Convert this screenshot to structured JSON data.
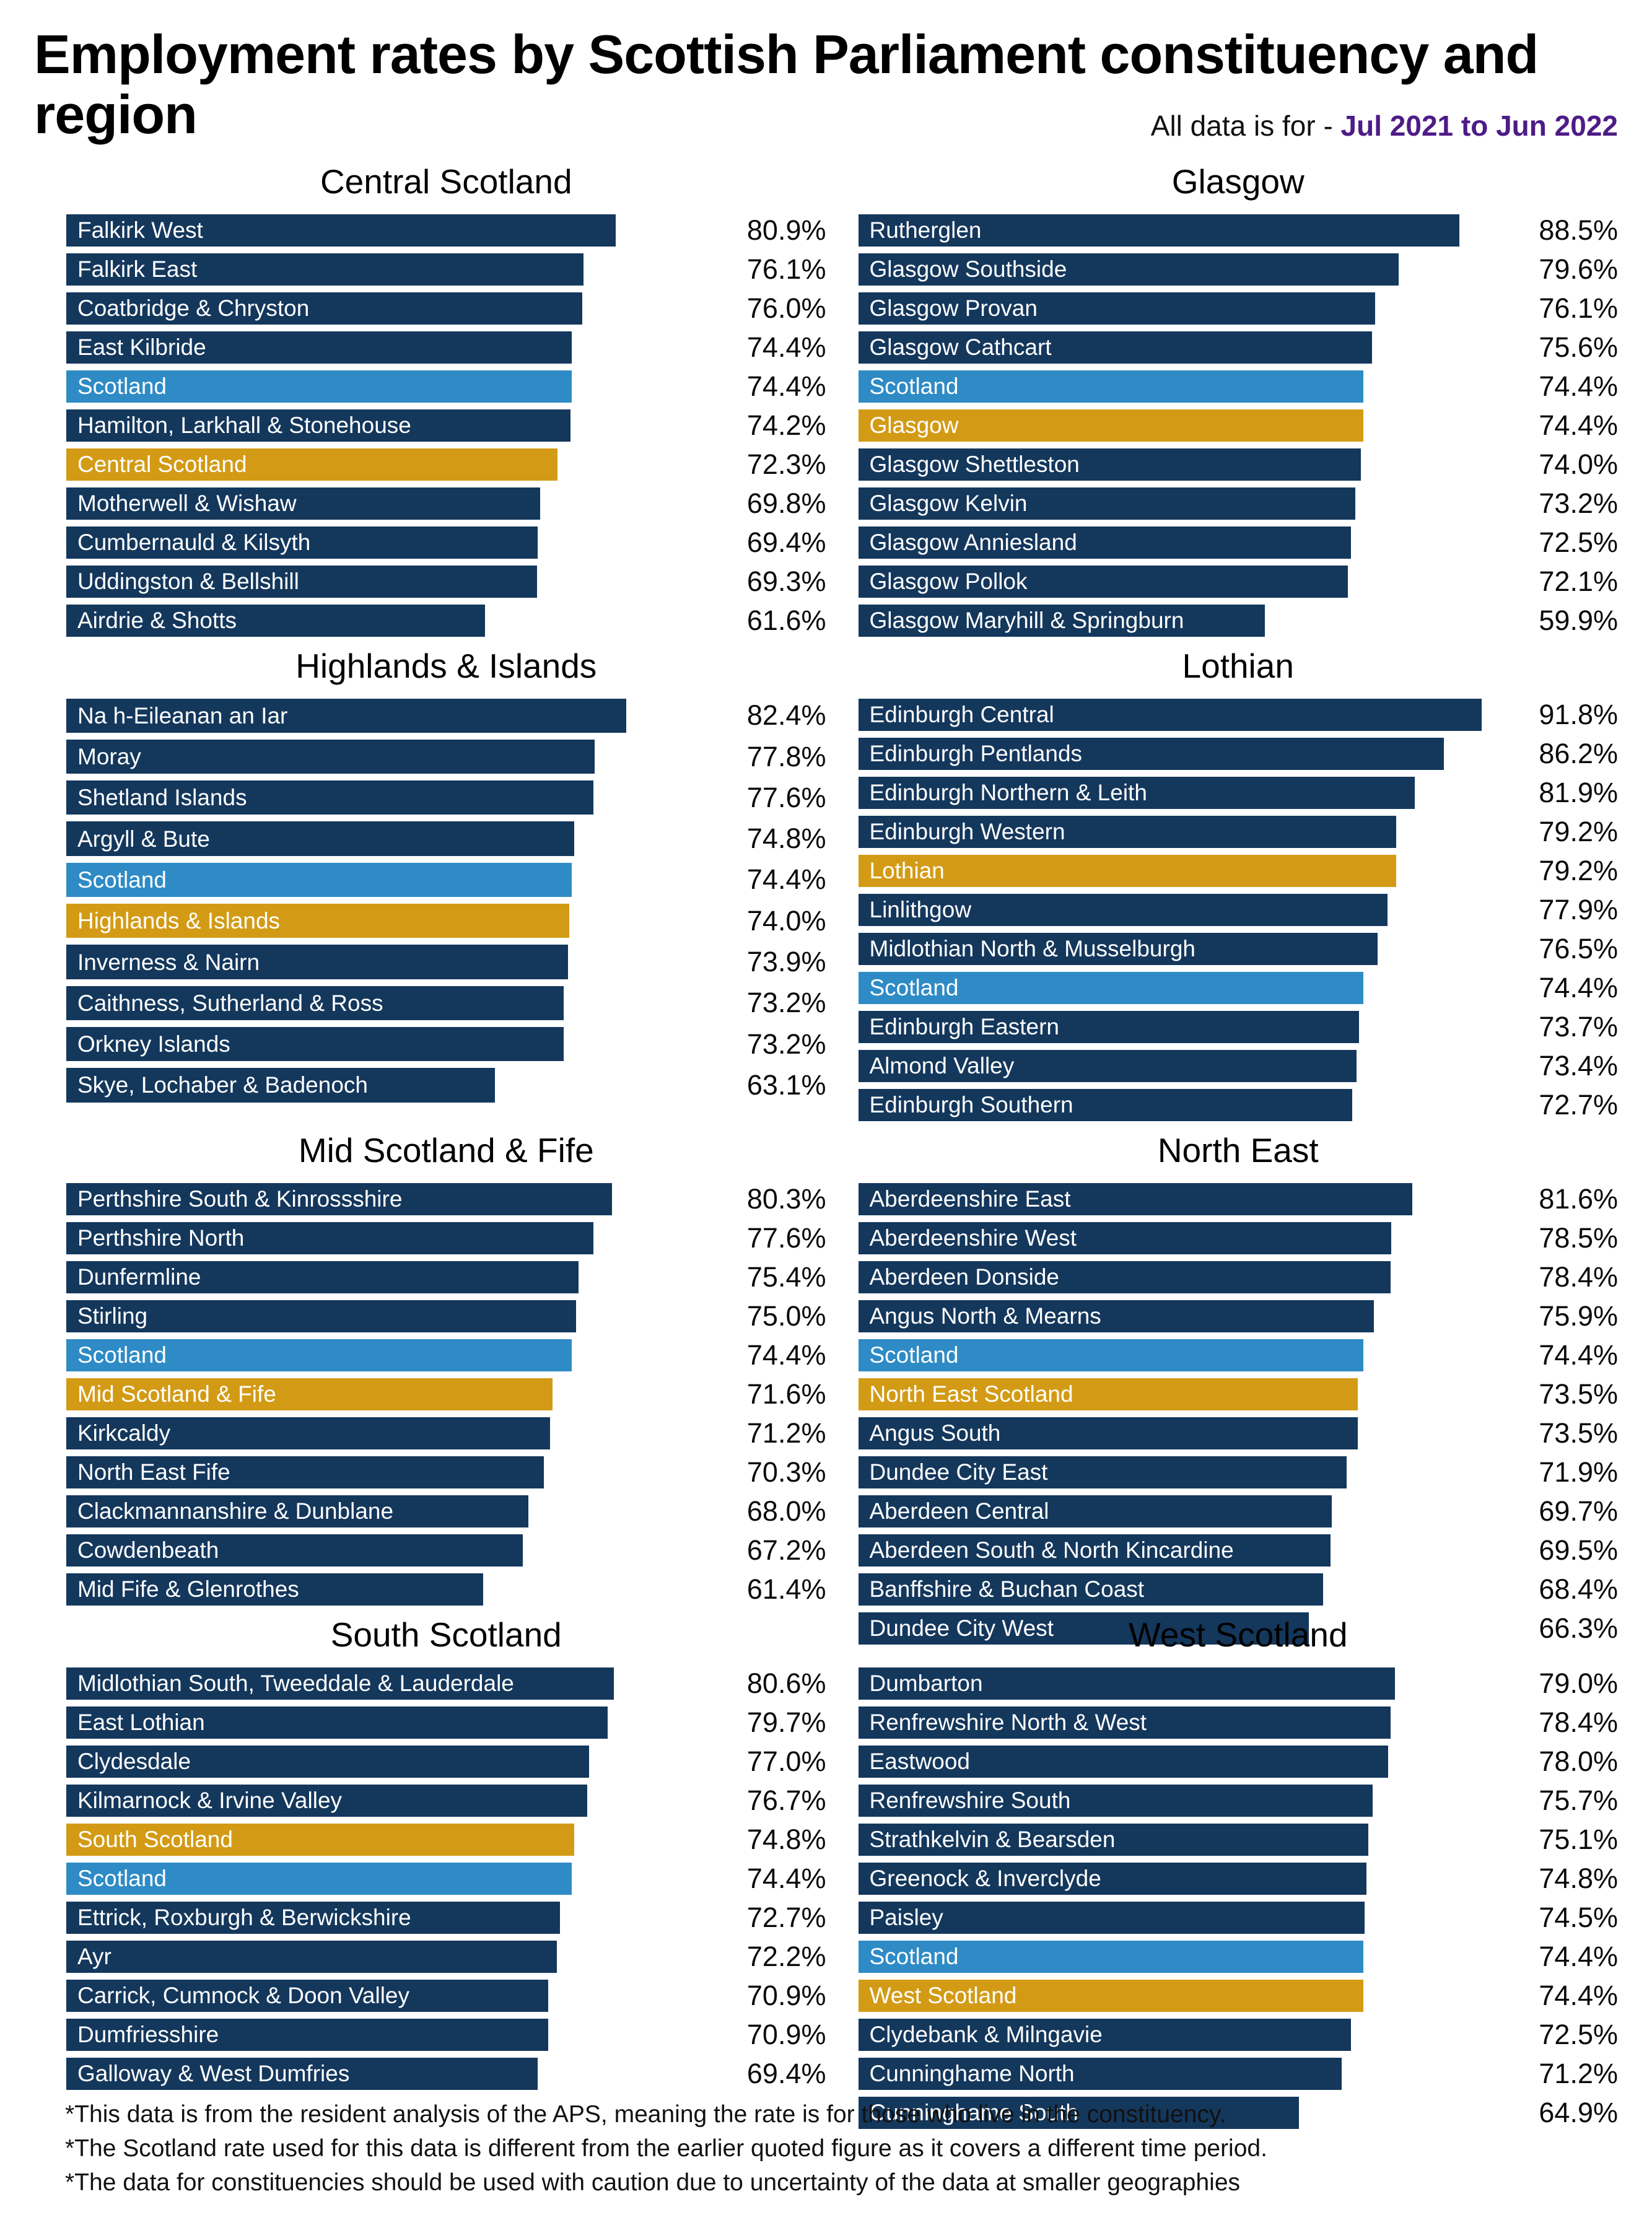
{
  "title": "Employment rates by Scottish Parliament constituency and region",
  "subtitle": {
    "prefix": "All data is for - ",
    "period": "Jul 2021 to Jun 2022"
  },
  "colors": {
    "constituency": "#14375c",
    "scotland": "#2e8bc5",
    "region": "#d39b15",
    "period_text": "#4e1b87",
    "bar_label": "#ffffff"
  },
  "footnotes": [
    "*This data is from the resident analysis of the APS, meaning the rate is for those who live in the constituency.",
    "*The Scotland rate used for this data is different from the earlier quoted figure as it covers a different time period.",
    "*The data for constituencies should be used with caution due to uncertainty of the data at smaller geographies"
  ],
  "chart_data": [
    {
      "type": "bar",
      "orientation": "horizontal",
      "title": "Central Scotland",
      "value_unit": "percent",
      "xlim": [
        0,
        95
      ],
      "rows": [
        {
          "label": "Falkirk West",
          "value": 80.9,
          "display": "80.9%",
          "kind": "constituency"
        },
        {
          "label": "Falkirk East",
          "value": 76.1,
          "display": "76.1%",
          "kind": "constituency"
        },
        {
          "label": "Coatbridge & Chryston",
          "value": 76.0,
          "display": "76.0%",
          "kind": "constituency"
        },
        {
          "label": "East Kilbride",
          "value": 74.4,
          "display": "74.4%",
          "kind": "constituency"
        },
        {
          "label": "Scotland",
          "value": 74.4,
          "display": "74.4%",
          "kind": "scotland"
        },
        {
          "label": "Hamilton, Larkhall & Stonehouse",
          "value": 74.2,
          "display": "74.2%",
          "kind": "constituency"
        },
        {
          "label": "Central Scotland",
          "value": 72.3,
          "display": "72.3%",
          "kind": "region"
        },
        {
          "label": "Motherwell & Wishaw",
          "value": 69.8,
          "display": "69.8%",
          "kind": "constituency"
        },
        {
          "label": "Cumbernauld & Kilsyth",
          "value": 69.4,
          "display": "69.4%",
          "kind": "constituency"
        },
        {
          "label": "Uddingston & Bellshill",
          "value": 69.3,
          "display": "69.3%",
          "kind": "constituency"
        },
        {
          "label": "Airdrie & Shotts",
          "value": 61.6,
          "display": "61.6%",
          "kind": "constituency"
        }
      ]
    },
    {
      "type": "bar",
      "orientation": "horizontal",
      "title": "Glasgow",
      "value_unit": "percent",
      "xlim": [
        0,
        95
      ],
      "rows": [
        {
          "label": "Rutherglen",
          "value": 88.5,
          "display": "88.5%",
          "kind": "constituency"
        },
        {
          "label": "Glasgow Southside",
          "value": 79.6,
          "display": "79.6%",
          "kind": "constituency"
        },
        {
          "label": "Glasgow Provan",
          "value": 76.1,
          "display": "76.1%",
          "kind": "constituency"
        },
        {
          "label": "Glasgow Cathcart",
          "value": 75.6,
          "display": "75.6%",
          "kind": "constituency"
        },
        {
          "label": "Scotland",
          "value": 74.4,
          "display": "74.4%",
          "kind": "scotland"
        },
        {
          "label": "Glasgow",
          "value": 74.4,
          "display": "74.4%",
          "kind": "region"
        },
        {
          "label": "Glasgow Shettleston",
          "value": 74.0,
          "display": "74.0%",
          "kind": "constituency"
        },
        {
          "label": "Glasgow Kelvin",
          "value": 73.2,
          "display": "73.2%",
          "kind": "constituency"
        },
        {
          "label": "Glasgow Anniesland",
          "value": 72.5,
          "display": "72.5%",
          "kind": "constituency"
        },
        {
          "label": "Glasgow Pollok",
          "value": 72.1,
          "display": "72.1%",
          "kind": "constituency"
        },
        {
          "label": "Glasgow Maryhill & Springburn",
          "value": 59.9,
          "display": "59.9%",
          "kind": "constituency"
        }
      ]
    },
    {
      "type": "bar",
      "orientation": "horizontal",
      "title": "Highlands & Islands",
      "value_unit": "percent",
      "xlim": [
        0,
        95
      ],
      "rows": [
        {
          "label": "Na h-Eileanan an Iar",
          "value": 82.4,
          "display": "82.4%",
          "kind": "constituency"
        },
        {
          "label": "Moray",
          "value": 77.8,
          "display": "77.8%",
          "kind": "constituency"
        },
        {
          "label": "Shetland Islands",
          "value": 77.6,
          "display": "77.6%",
          "kind": "constituency"
        },
        {
          "label": "Argyll & Bute",
          "value": 74.8,
          "display": "74.8%",
          "kind": "constituency"
        },
        {
          "label": "Scotland",
          "value": 74.4,
          "display": "74.4%",
          "kind": "scotland"
        },
        {
          "label": "Highlands & Islands",
          "value": 74.0,
          "display": "74.0%",
          "kind": "region"
        },
        {
          "label": "Inverness & Nairn",
          "value": 73.9,
          "display": "73.9%",
          "kind": "constituency"
        },
        {
          "label": "Caithness, Sutherland & Ross",
          "value": 73.2,
          "display": "73.2%",
          "kind": "constituency"
        },
        {
          "label": "Orkney Islands",
          "value": 73.2,
          "display": "73.2%",
          "kind": "constituency"
        },
        {
          "label": "Skye, Lochaber & Badenoch",
          "value": 63.1,
          "display": "63.1%",
          "kind": "constituency"
        }
      ]
    },
    {
      "type": "bar",
      "orientation": "horizontal",
      "title": "Lothian",
      "value_unit": "percent",
      "xlim": [
        0,
        95
      ],
      "rows": [
        {
          "label": "Edinburgh Central",
          "value": 91.8,
          "display": "91.8%",
          "kind": "constituency"
        },
        {
          "label": "Edinburgh Pentlands",
          "value": 86.2,
          "display": "86.2%",
          "kind": "constituency"
        },
        {
          "label": "Edinburgh Northern & Leith",
          "value": 81.9,
          "display": "81.9%",
          "kind": "constituency"
        },
        {
          "label": "Edinburgh Western",
          "value": 79.2,
          "display": "79.2%",
          "kind": "constituency"
        },
        {
          "label": "Lothian",
          "value": 79.2,
          "display": "79.2%",
          "kind": "region"
        },
        {
          "label": "Linlithgow",
          "value": 77.9,
          "display": "77.9%",
          "kind": "constituency"
        },
        {
          "label": "Midlothian North & Musselburgh",
          "value": 76.5,
          "display": "76.5%",
          "kind": "constituency"
        },
        {
          "label": "Scotland",
          "value": 74.4,
          "display": "74.4%",
          "kind": "scotland"
        },
        {
          "label": "Edinburgh Eastern",
          "value": 73.7,
          "display": "73.7%",
          "kind": "constituency"
        },
        {
          "label": "Almond Valley",
          "value": 73.4,
          "display": "73.4%",
          "kind": "constituency"
        },
        {
          "label": "Edinburgh Southern",
          "value": 72.7,
          "display": "72.7%",
          "kind": "constituency"
        }
      ]
    },
    {
      "type": "bar",
      "orientation": "horizontal",
      "title": "Mid Scotland & Fife",
      "value_unit": "percent",
      "xlim": [
        0,
        95
      ],
      "rows": [
        {
          "label": "Perthshire South & Kinrossshire",
          "value": 80.3,
          "display": "80.3%",
          "kind": "constituency"
        },
        {
          "label": "Perthshire North",
          "value": 77.6,
          "display": "77.6%",
          "kind": "constituency"
        },
        {
          "label": "Dunfermline",
          "value": 75.4,
          "display": "75.4%",
          "kind": "constituency"
        },
        {
          "label": "Stirling",
          "value": 75.0,
          "display": "75.0%",
          "kind": "constituency"
        },
        {
          "label": "Scotland",
          "value": 74.4,
          "display": "74.4%",
          "kind": "scotland"
        },
        {
          "label": "Mid Scotland & Fife",
          "value": 71.6,
          "display": "71.6%",
          "kind": "region"
        },
        {
          "label": "Kirkcaldy",
          "value": 71.2,
          "display": "71.2%",
          "kind": "constituency"
        },
        {
          "label": "North East Fife",
          "value": 70.3,
          "display": "70.3%",
          "kind": "constituency"
        },
        {
          "label": "Clackmannanshire & Dunblane",
          "value": 68.0,
          "display": "68.0%",
          "kind": "constituency"
        },
        {
          "label": "Cowdenbeath",
          "value": 67.2,
          "display": "67.2%",
          "kind": "constituency"
        },
        {
          "label": "Mid Fife & Glenrothes",
          "value": 61.4,
          "display": "61.4%",
          "kind": "constituency"
        }
      ]
    },
    {
      "type": "bar",
      "orientation": "horizontal",
      "title": "North East",
      "value_unit": "percent",
      "xlim": [
        0,
        95
      ],
      "rows": [
        {
          "label": "Aberdeenshire East",
          "value": 81.6,
          "display": "81.6%",
          "kind": "constituency"
        },
        {
          "label": "Aberdeenshire West",
          "value": 78.5,
          "display": "78.5%",
          "kind": "constituency"
        },
        {
          "label": "Aberdeen Donside",
          "value": 78.4,
          "display": "78.4%",
          "kind": "constituency"
        },
        {
          "label": "Angus North & Mearns",
          "value": 75.9,
          "display": "75.9%",
          "kind": "constituency"
        },
        {
          "label": "Scotland",
          "value": 74.4,
          "display": "74.4%",
          "kind": "scotland"
        },
        {
          "label": "North East Scotland",
          "value": 73.5,
          "display": "73.5%",
          "kind": "region"
        },
        {
          "label": "Angus South",
          "value": 73.5,
          "display": "73.5%",
          "kind": "constituency"
        },
        {
          "label": "Dundee City East",
          "value": 71.9,
          "display": "71.9%",
          "kind": "constituency"
        },
        {
          "label": "Aberdeen Central",
          "value": 69.7,
          "display": "69.7%",
          "kind": "constituency"
        },
        {
          "label": "Aberdeen South & North Kincardine",
          "value": 69.5,
          "display": "69.5%",
          "kind": "constituency"
        },
        {
          "label": "Banffshire & Buchan Coast",
          "value": 68.4,
          "display": "68.4%",
          "kind": "constituency"
        },
        {
          "label": "Dundee City West",
          "value": 66.3,
          "display": "66.3%",
          "kind": "constituency"
        }
      ]
    },
    {
      "type": "bar",
      "orientation": "horizontal",
      "title": "South Scotland",
      "value_unit": "percent",
      "xlim": [
        0,
        95
      ],
      "rows": [
        {
          "label": "Midlothian South, Tweeddale & Lauderdale",
          "value": 80.6,
          "display": "80.6%",
          "kind": "constituency"
        },
        {
          "label": "East Lothian",
          "value": 79.7,
          "display": "79.7%",
          "kind": "constituency"
        },
        {
          "label": "Clydesdale",
          "value": 77.0,
          "display": "77.0%",
          "kind": "constituency"
        },
        {
          "label": "Kilmarnock & Irvine Valley",
          "value": 76.7,
          "display": "76.7%",
          "kind": "constituency"
        },
        {
          "label": "South Scotland",
          "value": 74.8,
          "display": "74.8%",
          "kind": "region"
        },
        {
          "label": "Scotland",
          "value": 74.4,
          "display": "74.4%",
          "kind": "scotland"
        },
        {
          "label": "Ettrick, Roxburgh & Berwickshire",
          "value": 72.7,
          "display": "72.7%",
          "kind": "constituency"
        },
        {
          "label": "Ayr",
          "value": 72.2,
          "display": "72.2%",
          "kind": "constituency"
        },
        {
          "label": "Carrick, Cumnock & Doon Valley",
          "value": 70.9,
          "display": "70.9%",
          "kind": "constituency"
        },
        {
          "label": "Dumfriesshire",
          "value": 70.9,
          "display": "70.9%",
          "kind": "constituency"
        },
        {
          "label": "Galloway & West Dumfries",
          "value": 69.4,
          "display": "69.4%",
          "kind": "constituency"
        }
      ]
    },
    {
      "type": "bar",
      "orientation": "horizontal",
      "title": "West Scotland",
      "value_unit": "percent",
      "xlim": [
        0,
        95
      ],
      "rows": [
        {
          "label": "Dumbarton",
          "value": 79.0,
          "display": "79.0%",
          "kind": "constituency"
        },
        {
          "label": "Renfrewshire North & West",
          "value": 78.4,
          "display": "78.4%",
          "kind": "constituency"
        },
        {
          "label": "Eastwood",
          "value": 78.0,
          "display": "78.0%",
          "kind": "constituency"
        },
        {
          "label": "Renfrewshire South",
          "value": 75.7,
          "display": "75.7%",
          "kind": "constituency"
        },
        {
          "label": "Strathkelvin & Bearsden",
          "value": 75.1,
          "display": "75.1%",
          "kind": "constituency"
        },
        {
          "label": "Greenock & Inverclyde",
          "value": 74.8,
          "display": "74.8%",
          "kind": "constituency"
        },
        {
          "label": "Paisley",
          "value": 74.5,
          "display": "74.5%",
          "kind": "constituency"
        },
        {
          "label": "Scotland",
          "value": 74.4,
          "display": "74.4%",
          "kind": "scotland"
        },
        {
          "label": "West Scotland",
          "value": 74.4,
          "display": "74.4%",
          "kind": "region"
        },
        {
          "label": "Clydebank & Milngavie",
          "value": 72.5,
          "display": "72.5%",
          "kind": "constituency"
        },
        {
          "label": "Cunninghame North",
          "value": 71.2,
          "display": "71.2%",
          "kind": "constituency"
        },
        {
          "label": "Cunninghame South",
          "value": 64.9,
          "display": "64.9%",
          "kind": "constituency"
        }
      ]
    }
  ]
}
